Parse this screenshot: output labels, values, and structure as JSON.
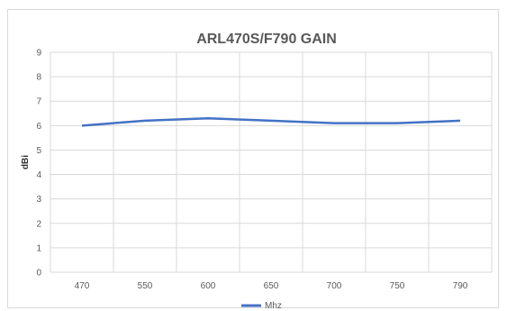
{
  "chart_data": {
    "type": "line",
    "title": "ARL470S/F790 GAIN",
    "xlabel": "",
    "ylabel": "dBi",
    "categories": [
      "470",
      "550",
      "600",
      "650",
      "700",
      "750",
      "790"
    ],
    "series": [
      {
        "name": "Mhz",
        "values": [
          6.0,
          6.2,
          6.3,
          6.2,
          6.1,
          6.1,
          6.2
        ]
      }
    ],
    "ylim": [
      0,
      9
    ],
    "yticks": [
      0,
      1,
      2,
      3,
      4,
      5,
      6,
      7,
      8,
      9
    ],
    "grid": true,
    "legend_position": "bottom",
    "colors": {
      "series": "#4472c4",
      "grid": "#d9d9d9",
      "text": "#595959"
    }
  }
}
